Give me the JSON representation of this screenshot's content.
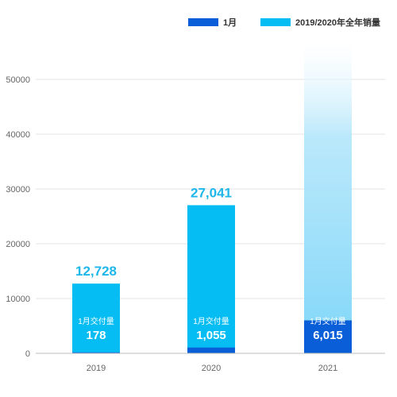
{
  "chart_data": {
    "type": "bar",
    "categories": [
      "2019",
      "2020",
      "2021"
    ],
    "series": [
      {
        "name": "1月",
        "values": [
          178,
          1055,
          6015
        ],
        "color": "#0a5fd8"
      },
      {
        "name": "2019/2020年全年销量",
        "values": [
          12728,
          27041,
          null
        ],
        "color": "#05bdf2"
      }
    ],
    "total_labels": [
      "12,728",
      "27,041",
      ""
    ],
    "inner_caption": "1月交付量",
    "inner_labels": [
      "178",
      "1,055",
      "6,015"
    ],
    "yticks": [
      0,
      10000,
      20000,
      30000,
      40000,
      50000
    ],
    "ylim": [
      0,
      57000
    ],
    "grid": true,
    "legend_position": "top-right",
    "colors": {
      "monthly": "#0a5fd8",
      "annual": "#05bdf2",
      "projected_fade": "#6ed2f7",
      "total_label": "#1fb6ea",
      "grid": "#e3e3e3",
      "axis": "#bdbdbd",
      "tick_text": "#666666"
    }
  }
}
